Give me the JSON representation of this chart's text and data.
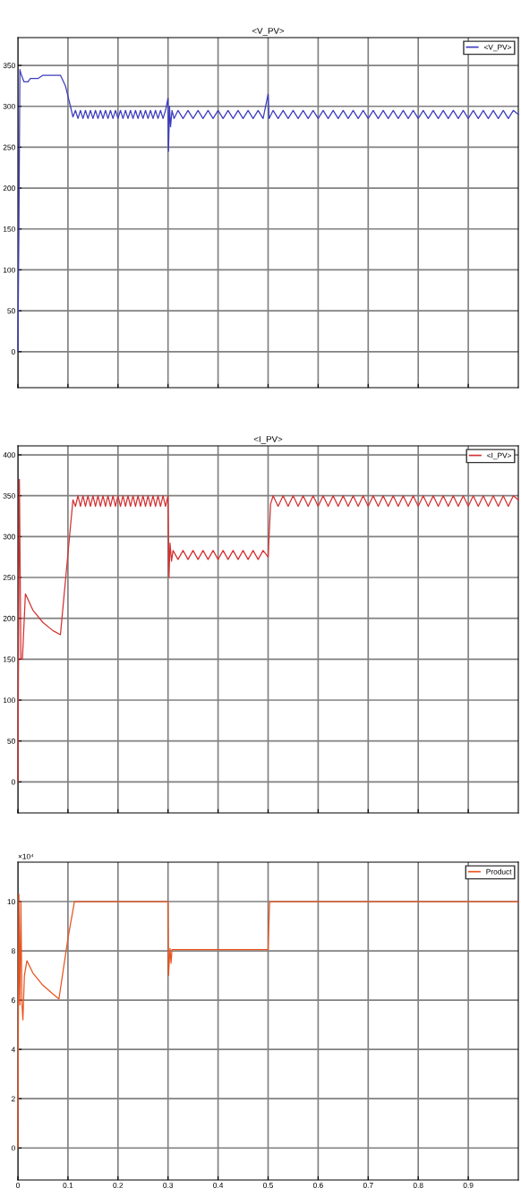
{
  "chart_data": [
    {
      "type": "line",
      "title": "<V_PV>",
      "xlim": [
        0,
        1
      ],
      "xticks": [
        0,
        0.1,
        0.2,
        0.3,
        0.4,
        0.5,
        0.6,
        0.7,
        0.8,
        0.9
      ],
      "ylim": [
        -44,
        384
      ],
      "yticks": [
        0,
        50,
        100,
        150,
        200,
        250,
        300,
        350
      ],
      "tick_labels": "y",
      "grid": true,
      "legend": "top right",
      "series": [
        {
          "name": "<V_PV>",
          "color": "#3c3cc0",
          "x": [
            0,
            0.002,
            0.004,
            0.006,
            0.012,
            0.02,
            0.025,
            0.04,
            0.05,
            0.085,
            0.095,
            0.105,
            0.11,
            0.115,
            0.12,
            0.125,
            0.13,
            0.135,
            0.14,
            0.145,
            0.15,
            0.155,
            0.16,
            0.165,
            0.17,
            0.175,
            0.18,
            0.185,
            0.19,
            0.195,
            0.2,
            0.205,
            0.21,
            0.215,
            0.22,
            0.225,
            0.23,
            0.235,
            0.24,
            0.245,
            0.25,
            0.255,
            0.26,
            0.265,
            0.27,
            0.275,
            0.28,
            0.285,
            0.29,
            0.295,
            0.3,
            0.301,
            0.303,
            0.305,
            0.308,
            0.312,
            0.32,
            0.33,
            0.34,
            0.35,
            0.36,
            0.37,
            0.38,
            0.39,
            0.4,
            0.41,
            0.42,
            0.43,
            0.44,
            0.45,
            0.46,
            0.47,
            0.48,
            0.49,
            0.5,
            0.502,
            0.51,
            0.52,
            0.53,
            0.54,
            0.55,
            0.56,
            0.57,
            0.58,
            0.59,
            0.6,
            0.61,
            0.62,
            0.63,
            0.64,
            0.65,
            0.66,
            0.67,
            0.68,
            0.69,
            0.7,
            0.71,
            0.72,
            0.73,
            0.74,
            0.75,
            0.76,
            0.77,
            0.78,
            0.79,
            0.8,
            0.81,
            0.82,
            0.83,
            0.84,
            0.85,
            0.86,
            0.87,
            0.88,
            0.89,
            0.9,
            0.91,
            0.92,
            0.93,
            0.94,
            0.95,
            0.96,
            0.97,
            0.98,
            0.99,
            1.0
          ],
          "values": [
            0,
            150,
            345,
            340,
            330,
            330,
            334,
            334,
            338,
            338,
            325,
            300,
            287,
            295,
            285,
            295,
            285,
            295,
            285,
            295,
            285,
            295,
            285,
            295,
            285,
            295,
            285,
            295,
            285,
            295,
            285,
            295,
            285,
            295,
            285,
            295,
            285,
            295,
            285,
            295,
            285,
            295,
            285,
            295,
            285,
            295,
            285,
            295,
            285,
            295,
            310,
            245,
            300,
            275,
            295,
            285,
            295,
            285,
            295,
            285,
            295,
            285,
            295,
            285,
            295,
            285,
            295,
            285,
            295,
            285,
            295,
            285,
            295,
            285,
            315,
            285,
            295,
            285,
            295,
            285,
            295,
            285,
            295,
            285,
            295,
            285,
            295,
            285,
            295,
            285,
            295,
            285,
            295,
            285,
            295,
            285,
            295,
            285,
            295,
            285,
            295,
            285,
            295,
            285,
            295,
            285,
            295,
            285,
            295,
            285,
            295,
            285,
            295,
            285,
            295,
            285,
            295,
            285,
            295,
            285,
            295,
            285,
            295,
            285,
            295,
            290
          ]
        }
      ]
    },
    {
      "type": "line",
      "title": "<I_PV>",
      "xlim": [
        0,
        1
      ],
      "xticks": [
        0,
        0.1,
        0.2,
        0.3,
        0.4,
        0.5,
        0.6,
        0.7,
        0.8,
        0.9
      ],
      "ylim": [
        -38,
        411
      ],
      "yticks": [
        0,
        50,
        100,
        150,
        200,
        250,
        300,
        350,
        400
      ],
      "tick_labels": "y",
      "grid": true,
      "legend": "top right",
      "series": [
        {
          "name": "<I_PV>",
          "color": "#d43030",
          "x": [
            0,
            0.003,
            0.006,
            0.009,
            0.015,
            0.03,
            0.05,
            0.07,
            0.085,
            0.11,
            0.115,
            0.12,
            0.125,
            0.13,
            0.135,
            0.14,
            0.145,
            0.15,
            0.155,
            0.16,
            0.165,
            0.17,
            0.175,
            0.18,
            0.185,
            0.19,
            0.195,
            0.2,
            0.205,
            0.21,
            0.215,
            0.22,
            0.225,
            0.23,
            0.235,
            0.24,
            0.245,
            0.25,
            0.255,
            0.26,
            0.265,
            0.27,
            0.275,
            0.28,
            0.285,
            0.29,
            0.295,
            0.3,
            0.302,
            0.304,
            0.307,
            0.31,
            0.32,
            0.33,
            0.34,
            0.35,
            0.36,
            0.37,
            0.38,
            0.39,
            0.4,
            0.41,
            0.42,
            0.43,
            0.44,
            0.45,
            0.46,
            0.47,
            0.48,
            0.49,
            0.5,
            0.505,
            0.51,
            0.52,
            0.53,
            0.54,
            0.55,
            0.56,
            0.57,
            0.58,
            0.59,
            0.6,
            0.61,
            0.62,
            0.63,
            0.64,
            0.65,
            0.66,
            0.67,
            0.68,
            0.69,
            0.7,
            0.71,
            0.72,
            0.73,
            0.74,
            0.75,
            0.76,
            0.77,
            0.78,
            0.79,
            0.8,
            0.81,
            0.82,
            0.83,
            0.84,
            0.85,
            0.86,
            0.87,
            0.88,
            0.89,
            0.9,
            0.91,
            0.92,
            0.93,
            0.94,
            0.95,
            0.96,
            0.97,
            0.98,
            0.99,
            1.0
          ],
          "values": [
            0,
            370,
            150,
            150,
            230,
            210,
            195,
            185,
            180,
            345,
            337,
            350,
            337,
            350,
            337,
            350,
            337,
            350,
            337,
            350,
            337,
            350,
            337,
            350,
            337,
            350,
            337,
            350,
            337,
            350,
            337,
            350,
            337,
            350,
            337,
            350,
            337,
            350,
            337,
            350,
            337,
            350,
            337,
            350,
            337,
            350,
            337,
            350,
            250,
            292,
            270,
            283,
            272,
            283,
            272,
            283,
            272,
            283,
            272,
            283,
            272,
            283,
            272,
            283,
            272,
            283,
            272,
            283,
            272,
            283,
            275,
            340,
            350,
            337,
            350,
            337,
            350,
            337,
            350,
            337,
            350,
            337,
            350,
            337,
            350,
            337,
            350,
            337,
            350,
            337,
            350,
            337,
            350,
            337,
            350,
            337,
            350,
            337,
            350,
            337,
            350,
            337,
            350,
            337,
            350,
            337,
            350,
            337,
            350,
            337,
            350,
            337,
            350,
            337,
            350,
            337,
            350,
            337,
            350,
            337,
            350,
            345
          ]
        }
      ]
    },
    {
      "type": "line",
      "annotations": [
        "×10⁴"
      ],
      "xlim": [
        0,
        1
      ],
      "xticks": [
        0,
        0.1,
        0.2,
        0.3,
        0.4,
        0.5,
        0.6,
        0.7,
        0.8,
        0.9
      ],
      "ylim": [
        -1.3,
        11.6
      ],
      "yticks": [
        0,
        2,
        4,
        6,
        8,
        10
      ],
      "grid": true,
      "legend": "top right",
      "series": [
        {
          "name": "Product",
          "color": "#e8541e",
          "x": [
            0,
            0.002,
            0.004,
            0.006,
            0.008,
            0.01,
            0.013,
            0.018,
            0.03,
            0.05,
            0.07,
            0.082,
            0.1,
            0.113,
            0.3,
            0.301,
            0.304,
            0.306,
            0.308,
            0.312,
            0.5,
            0.503,
            1.0
          ],
          "values": [
            0,
            10.3,
            5.8,
            10,
            5.9,
            5.2,
            7,
            7.6,
            7.1,
            6.6,
            6.25,
            6.05,
            8.5,
            10,
            10,
            7.0,
            8.1,
            7.5,
            8.05,
            8.05,
            8.05,
            10,
            10
          ]
        }
      ]
    }
  ]
}
